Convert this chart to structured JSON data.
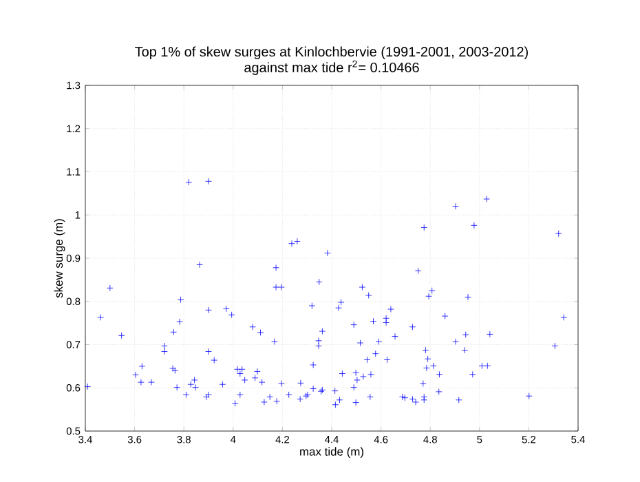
{
  "chart_data": {
    "type": "scatter",
    "title": "Top 1% of skew surges at Kinlochbervie (1991-2001, 2003-2012)",
    "subtitle": "against max tide r$^{2}$= 0.10466",
    "xlabel": "max tide (m)",
    "ylabel": "skew surge (m)",
    "xlim": [
      3.4,
      5.4
    ],
    "xticks": [
      3.4,
      3.6,
      3.8,
      4,
      4.2,
      4.4,
      4.6,
      4.8,
      5,
      5.2,
      5.4
    ],
    "ylim": [
      0.5,
      1.3
    ],
    "yticks": [
      0.5,
      0.6,
      0.7,
      0.8,
      0.9,
      1,
      1.1,
      1.2,
      1.3
    ],
    "grid": true,
    "marker": "cross",
    "series": [
      {
        "color": "#0000ff",
        "x": [
          3.5,
          3.82,
          3.9,
          3.864,
          3.787,
          4.174,
          4.174,
          4.196,
          4.238,
          4.26,
          4.383,
          4.349,
          4.32,
          4.903,
          5.029,
          4.775,
          4.978,
          5.321,
          4.751,
          4.524,
          4.55,
          4.794,
          4.807,
          4.953,
          4.438,
          3.409,
          3.462,
          3.547,
          3.604,
          3.63,
          3.626,
          3.668,
          3.721,
          3.721,
          3.755,
          3.764,
          3.758,
          3.783,
          3.772,
          3.809,
          3.828,
          3.843,
          3.847,
          3.891,
          3.9,
          3.9,
          3.9,
          3.923,
          3.957,
          3.972,
          3.994,
          4.008,
          4.028,
          4.017,
          4.036,
          4.028,
          4.047,
          4.079,
          4.089,
          4.098,
          4.111,
          4.117,
          4.126,
          4.149,
          4.168,
          4.177,
          4.196,
          4.226,
          4.274,
          4.272,
          4.296,
          4.302,
          4.325,
          4.325,
          4.347,
          4.347,
          4.362,
          4.362,
          4.357,
          4.413,
          4.415,
          4.428,
          4.64,
          4.49,
          4.569,
          4.621,
          4.621,
          4.728,
          4.86,
          4.657,
          4.516,
          4.591,
          4.903,
          4.944,
          5.042,
          5.342,
          5.306,
          4.781,
          4.94,
          4.544,
          4.578,
          4.625,
          4.79,
          4.813,
          4.785,
          5.01,
          5.032,
          4.443,
          4.498,
          4.503,
          4.528,
          4.559,
          4.49,
          4.837,
          4.972,
          4.771,
          4.432,
          4.556,
          4.498,
          4.687,
          4.697,
          4.728,
          4.741,
          4.775,
          4.775,
          4.835,
          4.916,
          5.201
        ],
        "values": [
          0.831,
          1.076,
          1.078,
          0.885,
          0.804,
          0.878,
          0.833,
          0.833,
          0.934,
          0.939,
          0.912,
          0.845,
          0.79,
          1.02,
          1.037,
          0.971,
          0.976,
          0.957,
          0.871,
          0.833,
          0.814,
          0.812,
          0.825,
          0.81,
          0.798,
          0.603,
          0.763,
          0.721,
          0.63,
          0.65,
          0.613,
          0.613,
          0.697,
          0.684,
          0.645,
          0.64,
          0.729,
          0.753,
          0.601,
          0.584,
          0.608,
          0.618,
          0.601,
          0.579,
          0.584,
          0.78,
          0.684,
          0.664,
          0.608,
          0.783,
          0.769,
          0.564,
          0.584,
          0.643,
          0.643,
          0.633,
          0.618,
          0.741,
          0.623,
          0.638,
          0.728,
          0.613,
          0.567,
          0.579,
          0.707,
          0.569,
          0.61,
          0.584,
          0.611,
          0.574,
          0.581,
          0.584,
          0.653,
          0.598,
          0.709,
          0.697,
          0.731,
          0.595,
          0.592,
          0.593,
          0.561,
          0.785,
          0.782,
          0.746,
          0.754,
          0.761,
          0.751,
          0.741,
          0.766,
          0.719,
          0.704,
          0.707,
          0.707,
          0.723,
          0.724,
          0.763,
          0.697,
          0.687,
          0.687,
          0.665,
          0.679,
          0.665,
          0.667,
          0.651,
          0.646,
          0.651,
          0.651,
          0.633,
          0.635,
          0.618,
          0.626,
          0.631,
          0.601,
          0.631,
          0.631,
          0.61,
          0.572,
          0.579,
          0.566,
          0.579,
          0.577,
          0.574,
          0.567,
          0.579,
          0.572,
          0.591,
          0.572,
          0.581
        ]
      }
    ]
  }
}
